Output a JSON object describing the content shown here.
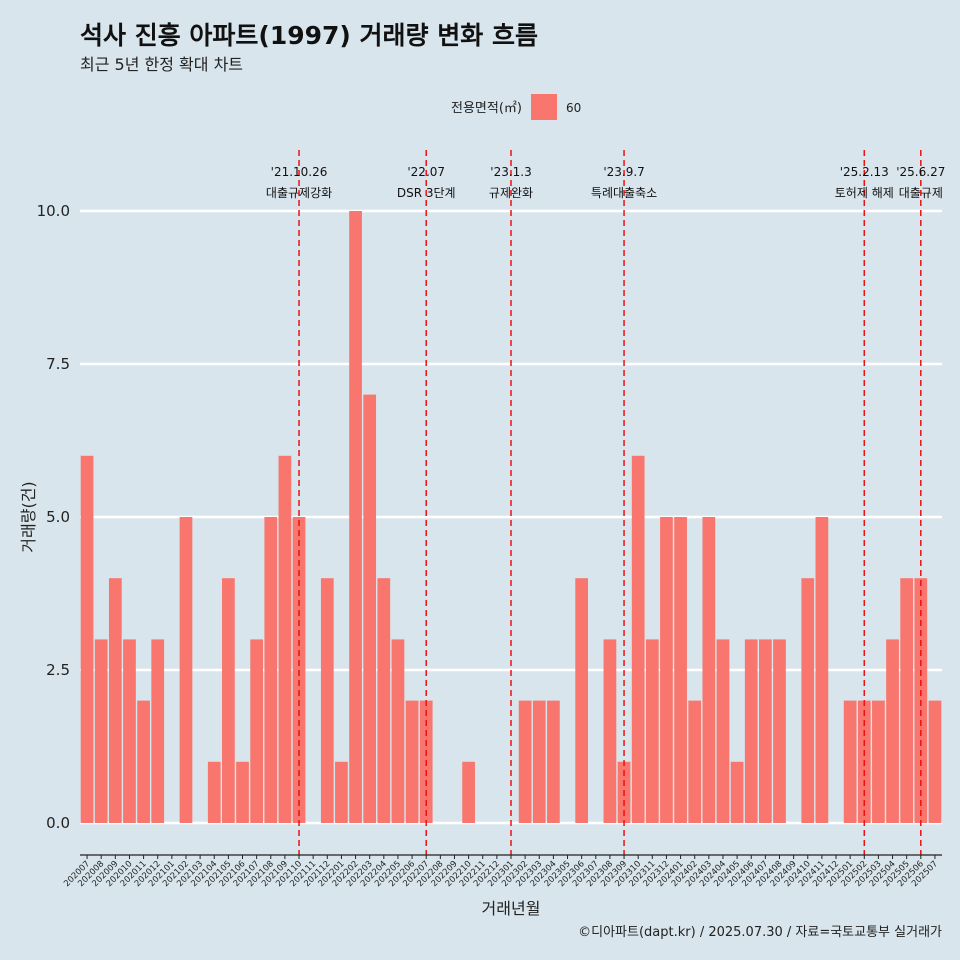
{
  "title": "석사 진흥 아파트(1997) 거래량 변화 흐름",
  "subtitle": "최근 5년 한정 확대 차트",
  "legend": {
    "title": "전용면적(㎡)",
    "items": [
      {
        "label": "60",
        "color": "#f8766d"
      }
    ]
  },
  "caption": "©디아파트(dapt.kr) / 2025.07.30 / 자료=국토교통부 실거래가",
  "colors": {
    "background": "#d8e5ec",
    "bar": "#f8766d",
    "gridline": "#ffffff",
    "annotation_line": "#ee1111"
  },
  "chart_data": {
    "type": "bar",
    "xlabel": "거래년월",
    "ylabel": "거래량(건)",
    "ylim": [
      0,
      10
    ],
    "yticks": [
      "0.0",
      "2.5",
      "5.0",
      "7.5",
      "10.0"
    ],
    "grid": true,
    "legend_position": "top",
    "categories": [
      "202007",
      "202008",
      "202009",
      "202010",
      "202011",
      "202012",
      "202101",
      "202102",
      "202103",
      "202104",
      "202105",
      "202106",
      "202107",
      "202108",
      "202109",
      "202110",
      "202111",
      "202112",
      "202201",
      "202202",
      "202203",
      "202204",
      "202205",
      "202206",
      "202207",
      "202208",
      "202209",
      "202210",
      "202211",
      "202212",
      "202301",
      "202302",
      "202303",
      "202304",
      "202305",
      "202306",
      "202307",
      "202308",
      "202309",
      "202310",
      "202311",
      "202312",
      "202401",
      "202402",
      "202403",
      "202404",
      "202405",
      "202406",
      "202407",
      "202408",
      "202409",
      "202410",
      "202411",
      "202412",
      "202501",
      "202502",
      "202503",
      "202504",
      "202505",
      "202506",
      "202507"
    ],
    "series": [
      {
        "name": "60",
        "values": [
          6,
          3,
          4,
          3,
          2,
          3,
          0,
          5,
          0,
          1,
          4,
          1,
          3,
          5,
          6,
          5,
          0,
          4,
          1,
          10,
          7,
          4,
          3,
          2,
          2,
          0,
          0,
          1,
          0,
          0,
          0,
          2,
          2,
          2,
          0,
          4,
          0,
          3,
          1,
          6,
          3,
          5,
          5,
          2,
          5,
          3,
          1,
          3,
          3,
          3,
          0,
          4,
          5,
          0,
          2,
          2,
          2,
          3,
          4,
          4,
          2
        ]
      }
    ],
    "annotations": [
      {
        "x": "202110",
        "date": "'21.10.26",
        "label": "대출규제강화"
      },
      {
        "x": "202207",
        "date": "'22.07",
        "label": "DSR 3단계"
      },
      {
        "x": "202301",
        "date": "'23.1.3",
        "label": "규제완화"
      },
      {
        "x": "202309",
        "date": "'23.9.7",
        "label": "특례대출축소"
      },
      {
        "x": "202502",
        "date": "'25.2.13",
        "label": "토허제 해제"
      },
      {
        "x": "202506",
        "date": "'25.6.27",
        "label": "대출규제"
      }
    ]
  }
}
